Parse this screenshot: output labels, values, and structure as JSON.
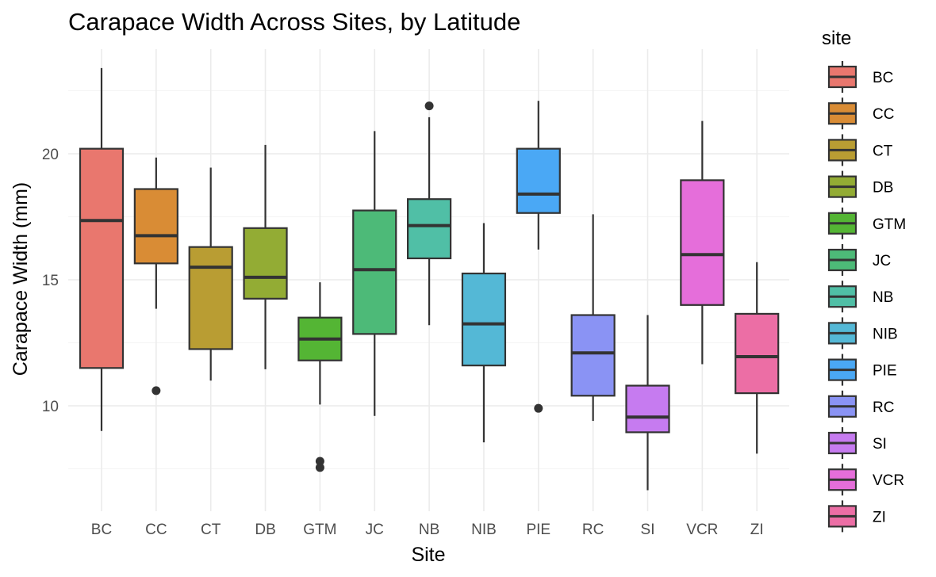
{
  "chart_data": {
    "type": "boxplot",
    "title": "Carapace Width Across Sites, by Latitude",
    "xlabel": "Site",
    "ylabel": "Carapace Width (mm)",
    "ylim": [
      6.5,
      24.5
    ],
    "yticks": [
      10,
      15,
      20
    ],
    "ytick_labels": [
      "10",
      "15",
      "20"
    ],
    "grid": true,
    "legend": {
      "title": "site",
      "position": "right"
    },
    "categories": [
      "BC",
      "CC",
      "CT",
      "DB",
      "GTM",
      "JC",
      "NB",
      "NIB",
      "PIE",
      "RC",
      "SI",
      "VCR",
      "ZI"
    ],
    "series": [
      {
        "name": "BC",
        "color": "#E9776E",
        "whisker_low": 9.0,
        "q1": 11.5,
        "median": 17.35,
        "q3": 20.2,
        "whisker_high": 23.4,
        "outliers": []
      },
      {
        "name": "CC",
        "color": "#D98C35",
        "whisker_low": 13.85,
        "q1": 15.65,
        "median": 16.75,
        "q3": 18.6,
        "whisker_high": 19.85,
        "outliers": [
          10.6
        ]
      },
      {
        "name": "CT",
        "color": "#B99D33",
        "whisker_low": 11.0,
        "q1": 12.25,
        "median": 15.5,
        "q3": 16.3,
        "whisker_high": 19.45,
        "outliers": []
      },
      {
        "name": "DB",
        "color": "#93AC34",
        "whisker_low": 11.45,
        "q1": 14.25,
        "median": 15.1,
        "q3": 17.05,
        "whisker_high": 20.35,
        "outliers": []
      },
      {
        "name": "GTM",
        "color": "#54B534",
        "whisker_low": 10.05,
        "q1": 11.8,
        "median": 12.65,
        "q3": 13.5,
        "whisker_high": 14.9,
        "outliers": [
          7.8,
          7.55
        ]
      },
      {
        "name": "JC",
        "color": "#4DBA78",
        "whisker_low": 9.6,
        "q1": 12.85,
        "median": 15.4,
        "q3": 17.75,
        "whisker_high": 20.9,
        "outliers": []
      },
      {
        "name": "NB",
        "color": "#50BFA6",
        "whisker_low": 13.2,
        "q1": 15.85,
        "median": 17.15,
        "q3": 18.2,
        "whisker_high": 21.45,
        "outliers": [
          21.9
        ]
      },
      {
        "name": "NIB",
        "color": "#54B8D6",
        "whisker_low": 8.55,
        "q1": 11.6,
        "median": 13.25,
        "q3": 15.25,
        "whisker_high": 17.25,
        "outliers": []
      },
      {
        "name": "PIE",
        "color": "#4AA8F5",
        "whisker_low": 16.2,
        "q1": 17.65,
        "median": 18.4,
        "q3": 20.2,
        "whisker_high": 22.1,
        "outliers": [
          9.9
        ]
      },
      {
        "name": "RC",
        "color": "#8A93F4",
        "whisker_low": 9.4,
        "q1": 10.4,
        "median": 12.1,
        "q3": 13.6,
        "whisker_high": 17.6,
        "outliers": []
      },
      {
        "name": "SI",
        "color": "#C67BF0",
        "whisker_low": 6.65,
        "q1": 8.95,
        "median": 9.55,
        "q3": 10.8,
        "whisker_high": 13.6,
        "outliers": []
      },
      {
        "name": "VCR",
        "color": "#E56EDA",
        "whisker_low": 11.65,
        "q1": 14.0,
        "median": 16.0,
        "q3": 18.95,
        "whisker_high": 21.3,
        "outliers": []
      },
      {
        "name": "ZI",
        "color": "#EC6EA5",
        "whisker_low": 8.1,
        "q1": 10.5,
        "median": 11.95,
        "q3": 13.65,
        "whisker_high": 15.7,
        "outliers": []
      }
    ]
  }
}
